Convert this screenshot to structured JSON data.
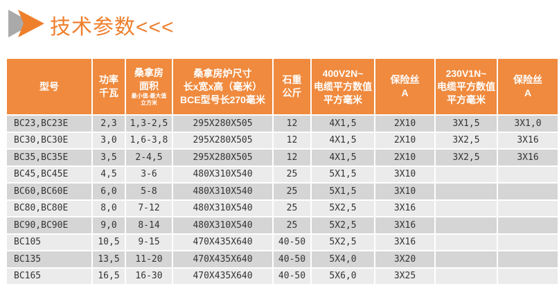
{
  "title": "技术参数<<<",
  "table": {
    "header": [
      {
        "lines": [
          "型号"
        ]
      },
      {
        "lines": [
          "功率",
          "千瓦"
        ]
      },
      {
        "lines": [
          "桑拿房",
          "面积"
        ],
        "small": [
          "最小值-最大值",
          "立方米"
        ]
      },
      {
        "lines": [
          "桑拿房炉尺寸",
          "长x宽x高（毫米）",
          "BCE型号长270毫米"
        ]
      },
      {
        "lines": [
          "石重",
          "公斤"
        ]
      },
      {
        "lines": [
          "400V2N~",
          "电缆平方数值",
          "平方毫米"
        ]
      },
      {
        "lines": [
          "保险丝",
          "A"
        ]
      },
      {
        "lines": [
          "230V1N~",
          "电缆平方数值",
          "平方毫米"
        ]
      },
      {
        "lines": [
          "保险丝",
          "A"
        ]
      }
    ],
    "rows": [
      [
        "BC23,BC23E",
        "2,3",
        "1,3-2,5",
        "295X280X505",
        "12",
        "4X1,5",
        "2X10",
        "3X1,5",
        "3X1,0"
      ],
      [
        "BC30,BC30E",
        "3,0",
        "1,6-3,8",
        "295X280X505",
        "12",
        "4X1,5",
        "2X10",
        "3X2,5",
        "3X16"
      ],
      [
        "BC35,BC35E",
        "3,5",
        "2-4,5",
        "295X280X505",
        "12",
        "4X1,5",
        "2X10",
        "3X2,5",
        "3X16"
      ],
      [
        "BC45,BC45E",
        "4,5",
        "3-6",
        "480X310X540",
        "25",
        "5X1,5",
        "3X10"
      ],
      [
        "BC60,BC60E",
        "6,0",
        "5-8",
        "480X310X540",
        "25",
        "5X1,5",
        "3X10"
      ],
      [
        "BC80,BC80E",
        "8,0",
        "7-12",
        "480X310X540",
        "25",
        "5X2,5",
        "3X16"
      ],
      [
        "BC90,BC90E",
        "9,0",
        "8-14",
        "480X310X540",
        "25",
        "5X2,5",
        "3X16"
      ],
      [
        "BC105",
        "10,5",
        "9-15",
        "470X435X640",
        "40-50",
        "5X2,5",
        "3X16"
      ],
      [
        "BC135",
        "13,5",
        "11-20",
        "470X435X640",
        "40-50",
        "5X4,0",
        "3X20"
      ],
      [
        "BC165",
        "16,5",
        "16-30",
        "470X435X640",
        "40-50",
        "5X6,0",
        "3X25"
      ]
    ]
  }
}
